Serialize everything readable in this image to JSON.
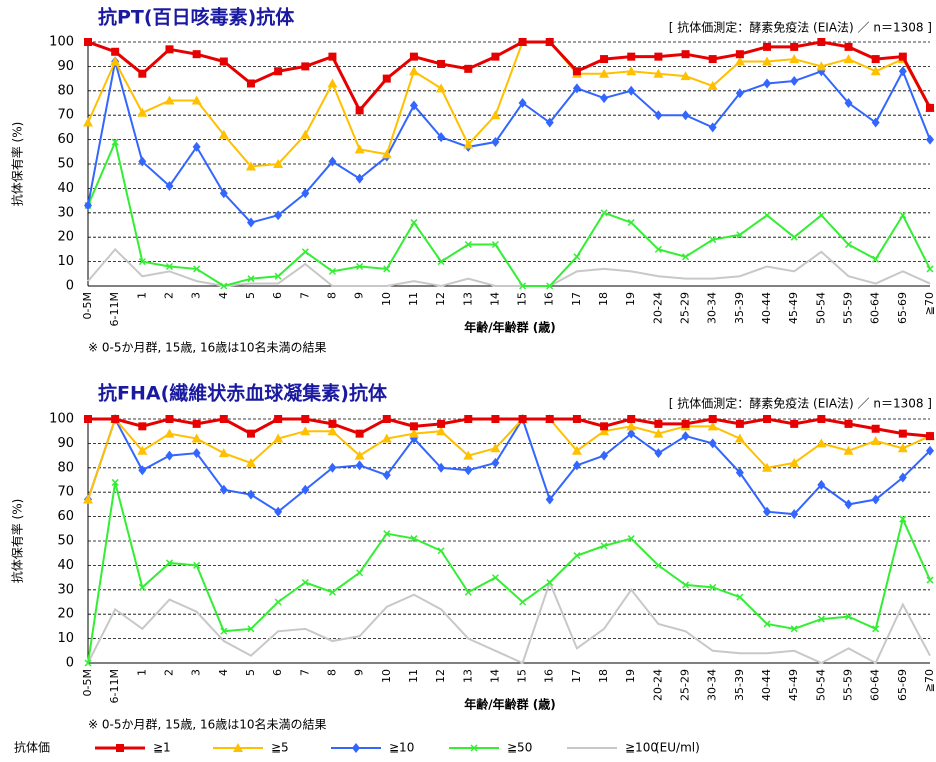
{
  "chart_data": [
    {
      "type": "line",
      "title": "抗PT(百日咳毒素)抗体",
      "note": "[ 抗体価測定：酵素免疫法 (EIA法) ／ n＝1308 ]",
      "ylabel": "抗体保有率 (%)",
      "xlabel": "年齢/年齢群 (歳)",
      "footnote": "※ 0-5か月群, 15歳, 16歳は10名未満の結果",
      "categories": [
        "0-5M",
        "6-11M",
        "1",
        "2",
        "3",
        "4",
        "5",
        "6",
        "7",
        "8",
        "9",
        "10",
        "11",
        "12",
        "13",
        "14",
        "15",
        "16",
        "17",
        "18",
        "19",
        "20-24",
        "25-29",
        "30-34",
        "35-39",
        "40-44",
        "45-49",
        "50-54",
        "55-59",
        "60-64",
        "65-69",
        "≧70"
      ],
      "ylim": [
        0,
        100
      ],
      "yticks": [
        0,
        10,
        20,
        30,
        40,
        50,
        60,
        70,
        80,
        90,
        100
      ],
      "grid": true,
      "series": [
        {
          "name": "≧1",
          "color": "#e60000",
          "marker": "square",
          "values": [
            100,
            96,
            87,
            97,
            95,
            92,
            83,
            88,
            90,
            94,
            72,
            85,
            94,
            91,
            89,
            94,
            100,
            100,
            88,
            93,
            94,
            94,
            95,
            93,
            95,
            98,
            98,
            100,
            98,
            93,
            94,
            73
          ]
        },
        {
          "name": "≧5",
          "color": "#ffc000",
          "marker": "triangle",
          "values": [
            67,
            92,
            71,
            76,
            76,
            62,
            49,
            50,
            62,
            83,
            56,
            54,
            88,
            81,
            58,
            70,
            100,
            100,
            87,
            87,
            88,
            87,
            86,
            82,
            92,
            92,
            93,
            90,
            93,
            88,
            93,
            73
          ]
        },
        {
          "name": "≧10",
          "color": "#3366ff",
          "marker": "diamond",
          "values": [
            33,
            92,
            51,
            41,
            57,
            38,
            26,
            29,
            38,
            51,
            44,
            53,
            74,
            61,
            57,
            59,
            75,
            67,
            81,
            77,
            80,
            70,
            70,
            65,
            79,
            83,
            84,
            88,
            75,
            67,
            88,
            60
          ]
        },
        {
          "name": "≧50",
          "color": "#33ee33",
          "marker": "cross",
          "values": [
            33,
            59,
            10,
            8,
            7,
            0,
            3,
            4,
            14,
            6,
            8,
            7,
            26,
            10,
            17,
            17,
            0,
            0,
            12,
            30,
            26,
            15,
            12,
            19,
            21,
            29,
            20,
            29,
            17,
            11,
            29,
            7
          ]
        },
        {
          "name": "≧100",
          "color": "#c8c8c8",
          "marker": "none",
          "values": [
            2,
            15,
            4,
            6,
            2,
            0,
            1,
            1,
            9,
            0,
            0,
            0,
            2,
            0,
            3,
            0,
            0,
            0,
            6,
            7,
            6,
            4,
            3,
            3,
            4,
            8,
            6,
            14,
            4,
            1,
            6,
            1
          ]
        }
      ]
    },
    {
      "type": "line",
      "title": "抗FHA(繊維状赤血球凝集素)抗体",
      "note": "[ 抗体価測定：酵素免疫法 (EIA法) ／ n＝1308 ]",
      "ylabel": "抗体保有率 (%)",
      "xlabel": "年齢/年齢群 (歳)",
      "footnote": "※ 0-5か月群, 15歳, 16歳は10名未満の結果",
      "categories": [
        "0-5M",
        "6-11M",
        "1",
        "2",
        "3",
        "4",
        "5",
        "6",
        "7",
        "8",
        "9",
        "10",
        "11",
        "12",
        "13",
        "14",
        "15",
        "16",
        "17",
        "18",
        "19",
        "20-24",
        "25-29",
        "30-34",
        "35-39",
        "40-44",
        "45-49",
        "50-54",
        "55-59",
        "60-64",
        "65-69",
        "≧70"
      ],
      "ylim": [
        0,
        100
      ],
      "yticks": [
        0,
        10,
        20,
        30,
        40,
        50,
        60,
        70,
        80,
        90,
        100
      ],
      "grid": true,
      "series": [
        {
          "name": "≧1",
          "color": "#e60000",
          "marker": "square",
          "values": [
            100,
            100,
            97,
            100,
            98,
            100,
            94,
            100,
            100,
            98,
            94,
            100,
            97,
            98,
            100,
            100,
            100,
            100,
            100,
            97,
            100,
            98,
            98,
            100,
            98,
            100,
            98,
            100,
            98,
            96,
            94,
            93
          ]
        },
        {
          "name": "≧5",
          "color": "#ffc000",
          "marker": "triangle",
          "values": [
            67,
            100,
            87,
            94,
            92,
            86,
            82,
            92,
            95,
            95,
            85,
            92,
            94,
            95,
            85,
            88,
            100,
            100,
            87,
            95,
            97,
            94,
            97,
            97,
            92,
            80,
            82,
            90,
            87,
            91,
            88,
            93
          ]
        },
        {
          "name": "≧10",
          "color": "#3366ff",
          "marker": "diamond",
          "values": [
            67,
            100,
            79,
            85,
            86,
            71,
            69,
            62,
            71,
            80,
            81,
            77,
            92,
            80,
            79,
            82,
            100,
            67,
            81,
            85,
            94,
            86,
            93,
            90,
            78,
            62,
            61,
            73,
            65,
            67,
            76,
            87
          ]
        },
        {
          "name": "≧50",
          "color": "#33ee33",
          "marker": "cross",
          "values": [
            0,
            74,
            31,
            41,
            40,
            13,
            14,
            25,
            33,
            29,
            37,
            53,
            51,
            46,
            29,
            35,
            25,
            33,
            44,
            48,
            51,
            40,
            32,
            31,
            27,
            16,
            14,
            18,
            19,
            14,
            59,
            34
          ]
        },
        {
          "name": "≧100",
          "color": "#c8c8c8",
          "marker": "none",
          "values": [
            0,
            22,
            14,
            26,
            21,
            9,
            3,
            13,
            14,
            9,
            11,
            23,
            28,
            22,
            10,
            5,
            0,
            33,
            6,
            14,
            30,
            16,
            13,
            5,
            4,
            4,
            5,
            0,
            6,
            0,
            24,
            3
          ]
        }
      ]
    }
  ],
  "legend": {
    "title": "抗体価",
    "unit": "(EU/ml)"
  }
}
